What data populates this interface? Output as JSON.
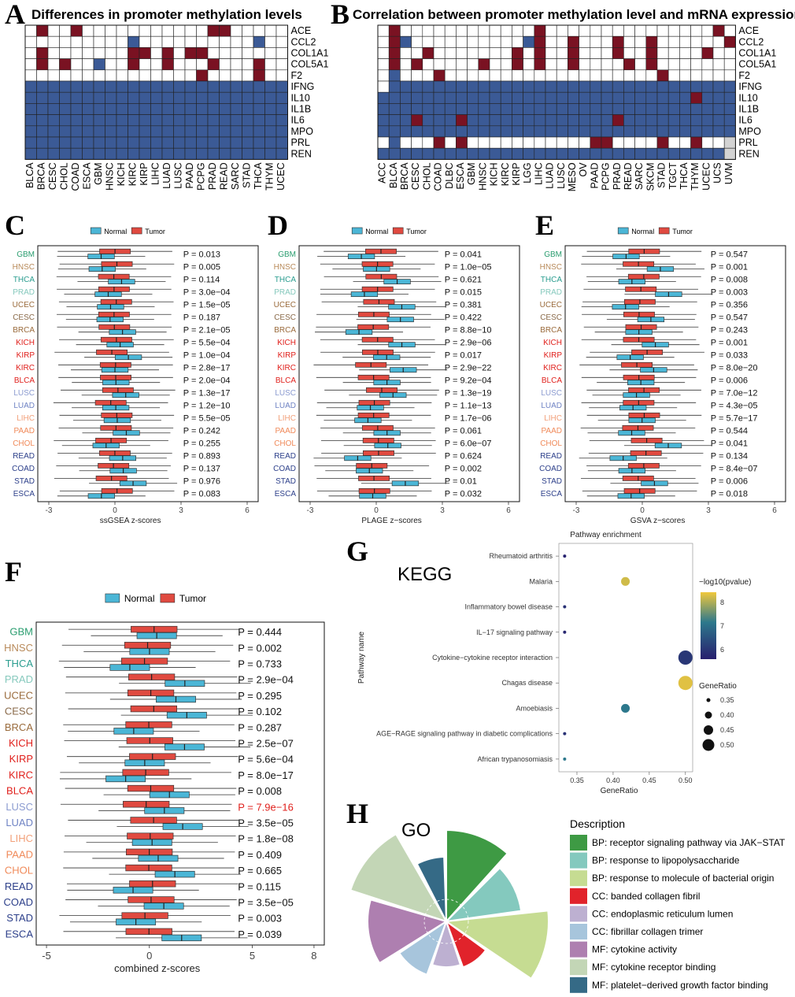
{
  "colors": {
    "methyl_red": "#7a1222",
    "methyl_blue": "#3b5a96",
    "normal": "#4bb6d6",
    "tumor": "#e04a40",
    "na_gray": "#d3d3d3"
  },
  "panelA": {
    "letter": "A",
    "title": "Differences in promoter methylation levels",
    "genes": [
      "ACE",
      "CCL2",
      "COL1A1",
      "COL5A1",
      "F2",
      "IFNG",
      "IL10",
      "IL1B",
      "IL6",
      "MPO",
      "PRL",
      "REN"
    ],
    "cancers": [
      "BLCA",
      "BRCA",
      "CESC",
      "CHOL",
      "COAD",
      "ESCA",
      "GBM",
      "HNSC",
      "KICH",
      "KIRC",
      "KIRP",
      "LIHC",
      "LUAD",
      "LUSC",
      "PAAD",
      "PCPG",
      "PRAD",
      "READ",
      "SARC",
      "STAD",
      "THCA",
      "THYM",
      "UCEC"
    ],
    "cells": [
      "WRWWRWWWWWWWWWWWRRWWWWW",
      "WWWWWWWWWBWWWWWWWWWWBWW",
      "WRWWWWWWWRRWRWRRWWWWWWW",
      "WRWRWWBWWRWWRWWWRWWWRWW",
      "WWWWWWWWWWWWWWWRWWWWRWW",
      "BBBBBBBBBBBBBBBBBBBBBBB",
      "BBBBBBBBBBBBBBBBBBBBBBB",
      "BBBBBBBBBBBBBBBBBBBBBBB",
      "BBBBBBBBBBBBBBBBBBBBBBB",
      "BBBBBBBBBBBBBBBBBBBBBBB",
      "BBBBBBBBBBBBBBBBBBBBBBB",
      "BBBBBBBBBBBBBBBBBBBBBBB"
    ]
  },
  "panelB": {
    "letter": "B",
    "title": "Correlation between promoter methylation level and mRNA expression",
    "genes": [
      "ACE",
      "CCL2",
      "COL1A1",
      "COL5A1",
      "F2",
      "IFNG",
      "IL10",
      "IL1B",
      "IL6",
      "MPO",
      "PRL",
      "REN"
    ],
    "cancers": [
      "ACC",
      "BLCA",
      "BRCA",
      "CESC",
      "CHOL",
      "COAD",
      "DLBC",
      "ESCA",
      "GBM",
      "HNSC",
      "KICH",
      "KIRC",
      "KIRP",
      "LGG",
      "LIHC",
      "LUAD",
      "LUSC",
      "MESO",
      "OV",
      "PAAD",
      "PCPG",
      "PRAD",
      "READ",
      "SARC",
      "SKCM",
      "STAD",
      "TGCT",
      "THCA",
      "THYM",
      "UCEC",
      "UCS",
      "UVM"
    ],
    "cells": [
      "WRWWWWWWWWWWWWRWWWWWWWWWWWWWWWRW",
      "WRBWWWWWWWWWWBRWWRWWWRWWRWWWWWWR",
      "WRWWRWWWWWWWRWRWWRWWWRWWRWWWWRWW",
      "WRWRWWWWWRWWRWRWWRWWWWRWRWWWWWWW",
      "WBWWWRWWWWWWWWWWWWWWWWWWWRWWWWWW",
      "WBBBBBBBBBBBBBBBBBBBBBBBBBBBBBBB",
      "BBBBBBBBBBBBBBBBBBBBBBBBBBBBRBBB",
      "BBBBBBBBBBBBBBBBBBBBBBBBBBBBBBBB",
      "BBBRBBBRBBBBBBBBBBBBBRBBBBBBBBBB",
      "BBBBBBBBBBBBBBBBBBBBBBBBBBBBBBBB",
      "WBWWWRWRWWWWWWWWWWWRRWWWWRWWRWWG",
      "BBBBBBBBBBBBBBBBBBBBBBBBBBBBBBBG"
    ]
  },
  "panelC": {
    "letter": "C",
    "xlabel": "ssGSEA z-scores",
    "legend": [
      "Normal",
      "Tumor"
    ],
    "xticks": [
      "-3",
      "0",
      "3",
      "6"
    ],
    "cancers": [
      "GBM",
      "HNSC",
      "THCA",
      "PRAD",
      "UCEC",
      "CESC",
      "BRCA",
      "KICH",
      "KIRP",
      "KIRC",
      "BLCA",
      "LUSC",
      "LUAD",
      "LIHC",
      "PAAD",
      "CHOL",
      "READ",
      "COAD",
      "STAD",
      "ESCA"
    ],
    "pvalues": [
      "P = 0.013",
      "P = 0.005",
      "P = 0.114",
      "P = 3.0e−04",
      "P = 1.5e−05",
      "P = 0.187",
      "P = 2.1e−05",
      "P = 5.5e−04",
      "P = 1.0e−04",
      "P = 2.8e−17",
      "P = 2.0e−04",
      "P = 1.3e−17",
      "P = 1.2e−10",
      "P = 5.5e−05",
      "P = 0.242",
      "P = 0.255",
      "P = 0.893",
      "P = 0.137",
      "P = 0.976",
      "P = 0.083"
    ]
  },
  "panelD": {
    "letter": "D",
    "xlabel": "PLAGE z−scores",
    "legend": [
      "Normal",
      "Tumor"
    ],
    "xticks": [
      "-3",
      "0",
      "3",
      "6"
    ],
    "cancers": [
      "GBM",
      "HNSC",
      "THCA",
      "PRAD",
      "UCEC",
      "CESC",
      "BRCA",
      "KICH",
      "KIRP",
      "KIRC",
      "BLCA",
      "LUSC",
      "LUAD",
      "LIHC",
      "PAAD",
      "CHOL",
      "READ",
      "COAD",
      "STAD",
      "ESCA"
    ],
    "pvalues": [
      "P = 0.041",
      "P = 1.0e−05",
      "P = 0.621",
      "P = 0.015",
      "P = 0.381",
      "P = 0.422",
      "P = 8.8e−10",
      "P = 2.9e−06",
      "P = 0.017",
      "P = 2.9e−22",
      "P = 9.2e−04",
      "P = 1.3e−19",
      "P = 1.1e−13",
      "P = 1.7e−06",
      "P = 0.061",
      "P = 6.0e−07",
      "P = 0.624",
      "P = 0.002",
      "P = 0.01",
      "P = 0.032"
    ]
  },
  "panelE": {
    "letter": "E",
    "xlabel": "GSVA z−scores",
    "legend": [
      "Normal",
      "Tumor"
    ],
    "xticks": [
      "-3",
      "0",
      "3",
      "6"
    ],
    "cancers": [
      "GBM",
      "HNSC",
      "THCA",
      "PRAD",
      "UCEC",
      "CESC",
      "BRCA",
      "KICH",
      "KIRP",
      "KIRC",
      "BLCA",
      "LUSC",
      "LUAD",
      "LIHC",
      "PAAD",
      "CHOL",
      "READ",
      "COAD",
      "STAD",
      "ESCA"
    ],
    "pvalues": [
      "P = 0.547",
      "P = 0.001",
      "P = 0.008",
      "P = 0.003",
      "P = 0.356",
      "P = 0.547",
      "P = 0.243",
      "P = 0.001",
      "P = 0.033",
      "P = 8.0e−20",
      "P = 0.006",
      "P = 7.0e−12",
      "P = 4.3e−05",
      "P = 5.7e−17",
      "P = 0.544",
      "P = 0.041",
      "P = 0.134",
      "P = 8.4e−07",
      "P = 0.006",
      "P = 0.018"
    ]
  },
  "panelF": {
    "letter": "F",
    "xlabel": "combined z-scores",
    "legend": [
      "Normal",
      "Tumor"
    ],
    "xticks": [
      "-5",
      "0",
      "5",
      "8"
    ],
    "cancers": [
      "GBM",
      "HNSC",
      "THCA",
      "PRAD",
      "UCEC",
      "CESC",
      "BRCA",
      "KICH",
      "KIRP",
      "KIRC",
      "BLCA",
      "LUSC",
      "LUAD",
      "LIHC",
      "PAAD",
      "CHOL",
      "READ",
      "COAD",
      "STAD",
      "ESCA"
    ],
    "pvalues": [
      "P = 0.444",
      "P = 0.002",
      "P = 0.733",
      "P = 2.9e−04",
      "P = 0.295",
      "P = 0.102",
      "P = 0.287",
      "P = 2.5e−07",
      "P = 5.6e−04",
      "P = 8.0e−17",
      "P = 0.008",
      "P = 7.9e−16",
      "P = 3.5e−05",
      "P = 1.8e−08",
      "P = 0.409",
      "P = 0.665",
      "P = 0.115",
      "P = 3.5e−05",
      "P = 0.003",
      "P = 0.039"
    ]
  },
  "cancer_colors": {
    "GBM": "#2a9d6f",
    "HNSC": "#b88a5a",
    "THCA": "#2a9d8f",
    "PRAD": "#86c9bd",
    "UCEC": "#9a6b3c",
    "CESC": "#8a6a4a",
    "BRCA": "#9a6b3c",
    "KICH": "#e0201c",
    "KIRP": "#e0201c",
    "KIRC": "#e0201c",
    "BLCA": "#e0201c",
    "LUSC": "#8b9bd0",
    "LUAD": "#6f83c4",
    "LIHC": "#f2a07a",
    "PAAD": "#f08a5a",
    "CHOL": "#f08a5a",
    "READ": "#2c3f8a",
    "COAD": "#2c3f8a",
    "STAD": "#2c3f8a",
    "ESCA": "#2c3f8a"
  },
  "panelG": {
    "letter": "G",
    "title": "Pathway enrichment",
    "subtitle": "KEGG",
    "ylabel": "Pathway name",
    "xlabel": "GeneRatio",
    "color_legend_title": "−log10(pvalue)",
    "size_legend_title": "GeneRatio",
    "color_ticks": [
      "8",
      "7",
      "6"
    ],
    "size_ticks": [
      "0.35",
      "0.40",
      "0.45",
      "0.50"
    ],
    "xticks": [
      "0.35",
      "0.40",
      "0.45",
      "0.50"
    ],
    "pathways": [
      "Rheumatoid arthritis",
      "Malaria",
      "Inflammatory bowel disease",
      "IL−17 signaling pathway",
      "Cytokine−cytokine receptor interaction",
      "Chagas disease",
      "Amoebiasis",
      "AGE−RAGE signaling pathway in diabetic complications",
      "African trypanosomiasis"
    ],
    "gene_ratio": [
      0.333,
      0.417,
      0.333,
      0.333,
      0.5,
      0.5,
      0.417,
      0.333,
      0.333
    ],
    "neglog10p": [
      5.5,
      8.2,
      5.8,
      5.6,
      5.9,
      8.3,
      7.2,
      5.8,
      7.2
    ]
  },
  "panelH": {
    "letter": "H",
    "subtitle": "GO",
    "legend_title": "Description",
    "items": [
      {
        "label": "BP: receptor signaling pathway via JAK−STAT",
        "color": "#3e9a44"
      },
      {
        "label": "BP: response to lipopolysaccharide",
        "color": "#84c9be"
      },
      {
        "label": "BP: response to molecule of bacterial origin",
        "color": "#c6dc92"
      },
      {
        "label": "CC: banded collagen fibril",
        "color": "#e1232b"
      },
      {
        "label": "CC: endoplasmic reticulum lumen",
        "color": "#bdb0d1"
      },
      {
        "label": "CC: fibrillar collagen trimer",
        "color": "#a7c5dc"
      },
      {
        "label": "MF: cytokine activity",
        "color": "#ae7fb0"
      },
      {
        "label": "MF: cytokine receptor binding",
        "color": "#c3d6b6"
      },
      {
        "label": "MF: platelet−derived growth factor binding",
        "color": "#356a86"
      }
    ]
  },
  "chart_data": [
    {
      "type": "heatmap",
      "panel": "A",
      "title": "Differences in promoter methylation levels"
    },
    {
      "type": "heatmap",
      "panel": "B",
      "title": "Correlation between promoter methylation level and mRNA expression"
    },
    {
      "type": "box",
      "panel": "C",
      "xlabel": "ssGSEA z-scores",
      "xlim": [
        -3.5,
        6.5
      ],
      "normal": [
        [
          -1.4,
          -1.0,
          -0.4
        ],
        [
          -1.3,
          -0.6,
          0.1
        ],
        [
          -0.8,
          -0.3,
          0.3
        ],
        [
          -0.3,
          0.3,
          0.8
        ],
        [
          0.0,
          0.6,
          1.3
        ],
        [
          -0.3,
          0.3,
          0.9
        ],
        [
          0.2,
          0.7,
          1.3
        ],
        [
          -0.2,
          0.4,
          0.8
        ],
        [
          -0.1,
          0.4,
          1.1
        ],
        [
          -1.9,
          -1.2,
          -0.5
        ],
        [
          0.2,
          0.8,
          1.3
        ],
        [
          0.6,
          1.3,
          2.0
        ],
        [
          0.3,
          1.0,
          1.6
        ],
        [
          -0.1,
          0.4,
          0.8
        ],
        [
          0.2,
          0.7,
          1.4
        ],
        [
          -0.2,
          0.4,
          0.8
        ],
        [
          -0.6,
          -0.1,
          0.4
        ],
        [
          -0.5,
          -0.1,
          0.4
        ],
        [
          -0.4,
          0.0,
          0.5
        ],
        [
          -1.0,
          -0.6,
          -0.2
        ]
      ],
      "tumor": [
        [
          -0.6,
          0.0,
          0.7
        ],
        [
          -0.6,
          0.0,
          0.6
        ],
        [
          -0.7,
          -0.1,
          0.6
        ],
        [
          -0.7,
          -0.1,
          0.5
        ],
        [
          -0.6,
          0.0,
          0.6
        ],
        [
          -0.6,
          -0.1,
          0.5
        ],
        [
          -0.6,
          0.0,
          0.5
        ],
        [
          -0.8,
          -0.2,
          0.4
        ],
        [
          -0.7,
          -0.1,
          0.5
        ],
        [
          -0.7,
          -0.1,
          0.4
        ],
        [
          -0.7,
          -0.1,
          0.4
        ],
        [
          -0.7,
          -0.1,
          0.5
        ],
        [
          -0.7,
          -0.1,
          0.5
        ],
        [
          -0.8,
          -0.2,
          0.4
        ],
        [
          -0.7,
          -0.1,
          0.5
        ],
        [
          -0.8,
          -0.2,
          0.4
        ],
        [
          -0.6,
          -0.1,
          0.5
        ],
        [
          -0.6,
          0.0,
          0.6
        ],
        [
          -0.6,
          0.0,
          0.6
        ],
        [
          -0.5,
          0.0,
          0.6
        ]
      ]
    },
    {
      "type": "box",
      "panel": "D",
      "xlabel": "PLAGE z−scores",
      "xlim": [
        -3.5,
        6.5
      ]
    },
    {
      "type": "box",
      "panel": "E",
      "xlabel": "GSVA z−scores",
      "xlim": [
        -3.5,
        6.5
      ]
    },
    {
      "type": "box",
      "panel": "F",
      "xlabel": "combined z-scores",
      "xlim": [
        -5.5,
        8.5
      ]
    },
    {
      "type": "scatter",
      "panel": "G",
      "title": "Pathway enrichment"
    },
    {
      "type": "pie",
      "panel": "H",
      "subtitle": "GO"
    }
  ]
}
